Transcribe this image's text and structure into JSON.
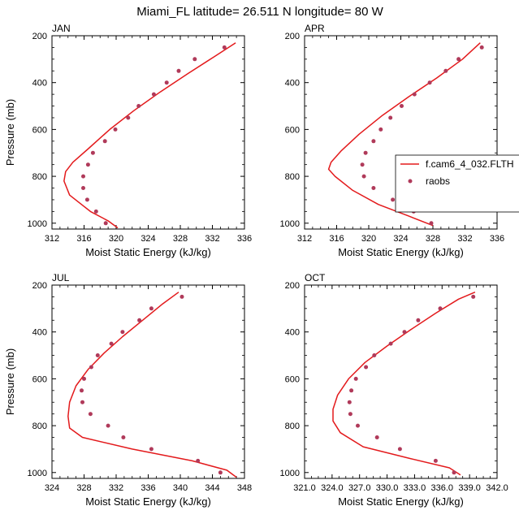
{
  "title": "Miami_FL  latitude= 26.511 N longitude= 80 W",
  "colors": {
    "model": "#e31a1c",
    "obs": "#b03a5a"
  },
  "legend": {
    "model_label": "f.cam6_4_032.FLTH",
    "obs_label": "raobs"
  },
  "chart_data": [
    {
      "type": "line",
      "panel": "JAN",
      "xlabel": "Moist Static Energy (kJ/kg)",
      "ylabel": "Pressure (mb)",
      "xlim": [
        312,
        336
      ],
      "ylim": [
        1025,
        200
      ],
      "xticks": [
        "312",
        "316",
        "320",
        "324",
        "328",
        "332",
        "336"
      ],
      "yticks": [
        "200",
        "400",
        "600",
        "800",
        "1000"
      ],
      "series": [
        {
          "name": "f.cam6_4_032.FLTH",
          "kind": "line",
          "x": [
            320.2,
            319.0,
            316.8,
            314.2,
            313.5,
            313.7,
            314.6,
            316.6,
            319.2,
            322.2,
            325.5,
            329.0,
            332.2,
            334.9
          ],
          "y": [
            1020,
            990,
            950,
            880,
            820,
            780,
            740,
            680,
            600,
            520,
            440,
            360,
            290,
            230
          ]
        },
        {
          "name": "raobs",
          "kind": "scatter",
          "x": [
            318.7,
            317.5,
            316.4,
            315.9,
            315.9,
            316.5,
            317.1,
            318.6,
            319.9,
            321.5,
            322.8,
            324.7,
            326.3,
            327.8,
            329.8,
            333.5
          ],
          "y": [
            1000,
            950,
            900,
            850,
            800,
            750,
            700,
            650,
            600,
            550,
            500,
            450,
            400,
            350,
            300,
            250
          ]
        }
      ]
    },
    {
      "type": "line",
      "panel": "APR",
      "xlabel": "Moist Static Energy (kJ/kg)",
      "ylabel": "",
      "xlim": [
        312,
        336
      ],
      "ylim": [
        1025,
        200
      ],
      "xticks": [
        "312",
        "316",
        "320",
        "324",
        "328",
        "332",
        "336"
      ],
      "yticks": [
        "200",
        "400",
        "600",
        "800",
        "1000"
      ],
      "series": [
        {
          "name": "f.cam6_4_032.FLTH",
          "kind": "line",
          "x": [
            328.0,
            325.0,
            321.2,
            318.0,
            315.8,
            315.0,
            315.3,
            316.6,
            318.8,
            321.7,
            325.0,
            328.5,
            331.7,
            333.9
          ],
          "y": [
            1010,
            970,
            920,
            860,
            800,
            770,
            740,
            690,
            620,
            540,
            460,
            380,
            300,
            230
          ]
        },
        {
          "name": "raobs",
          "kind": "scatter",
          "x": [
            327.8,
            325.6,
            323.0,
            320.6,
            319.4,
            319.2,
            319.6,
            320.6,
            321.5,
            322.7,
            324.1,
            325.7,
            327.6,
            329.6,
            331.2,
            334.1
          ],
          "y": [
            1000,
            950,
            900,
            850,
            800,
            750,
            700,
            650,
            600,
            550,
            500,
            450,
            400,
            350,
            300,
            250
          ]
        }
      ]
    },
    {
      "type": "line",
      "panel": "JUL",
      "xlabel": "Moist Static Energy (kJ/kg)",
      "ylabel": "Pressure (mb)",
      "xlim": [
        324,
        348
      ],
      "ylim": [
        1025,
        200
      ],
      "xticks": [
        "324",
        "328",
        "332",
        "336",
        "340",
        "344",
        "348"
      ],
      "yticks": [
        "200",
        "400",
        "600",
        "800",
        "1000"
      ],
      "series": [
        {
          "name": "f.cam6_4_032.FLTH",
          "kind": "line",
          "x": [
            347.0,
            345.8,
            341.5,
            334.0,
            327.8,
            326.2,
            326.0,
            326.2,
            327.0,
            328.5,
            330.5,
            332.8,
            335.3,
            337.8,
            339.8
          ],
          "y": [
            1020,
            990,
            950,
            900,
            850,
            810,
            760,
            700,
            630,
            560,
            490,
            420,
            350,
            280,
            230
          ]
        },
        {
          "name": "raobs",
          "kind": "scatter",
          "x": [
            345.0,
            342.2,
            336.4,
            332.9,
            331.0,
            328.8,
            327.8,
            327.7,
            328.0,
            328.9,
            329.7,
            331.4,
            332.8,
            334.9,
            336.4,
            340.2
          ],
          "y": [
            1000,
            950,
            900,
            850,
            800,
            750,
            700,
            650,
            600,
            550,
            500,
            450,
            400,
            350,
            300,
            250
          ]
        }
      ]
    },
    {
      "type": "line",
      "panel": "OCT",
      "xlabel": "Moist Static Energy (kJ/kg)",
      "ylabel": "",
      "xlim": [
        321,
        342
      ],
      "ylim": [
        1025,
        200
      ],
      "xticks": [
        "321.0",
        "324.0",
        "327.0",
        "330.0",
        "333.0",
        "336.0",
        "339.0",
        "342.0"
      ],
      "yticks": [
        "200",
        "400",
        "600",
        "800",
        "1000"
      ],
      "series": [
        {
          "name": "f.cam6_4_032.FLTH",
          "kind": "line",
          "x": [
            338.0,
            336.8,
            332.5,
            327.4,
            324.9,
            324.1,
            324.1,
            324.6,
            325.8,
            327.6,
            330.0,
            332.6,
            335.3,
            337.8,
            339.6
          ],
          "y": [
            1010,
            980,
            940,
            890,
            830,
            780,
            730,
            670,
            600,
            530,
            460,
            390,
            320,
            260,
            230
          ]
        },
        {
          "name": "raobs",
          "kind": "scatter",
          "x": [
            337.3,
            335.3,
            331.4,
            328.9,
            326.8,
            326.0,
            325.9,
            326.1,
            326.6,
            327.7,
            328.6,
            330.4,
            331.9,
            333.4,
            335.8,
            339.4
          ],
          "y": [
            1000,
            950,
            900,
            850,
            800,
            750,
            700,
            650,
            600,
            550,
            500,
            450,
            400,
            350,
            300,
            250
          ]
        }
      ]
    }
  ]
}
